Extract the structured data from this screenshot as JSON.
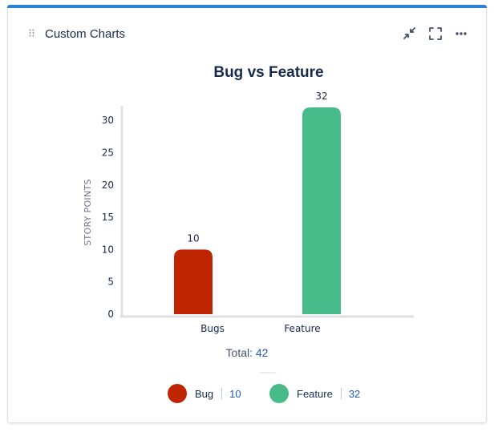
{
  "card": {
    "title": "Custom Charts"
  },
  "total": {
    "label": "Total:",
    "value": "42"
  },
  "legend": [
    {
      "name": "Bug",
      "value": "10"
    },
    {
      "name": "Feature",
      "value": "32"
    }
  ],
  "colors": {
    "accent": "#2d7fd8",
    "bug": "#bf2600",
    "feature": "#47bc8a"
  },
  "icons": [
    "drag-handle-icon",
    "minimize-icon",
    "fullscreen-icon",
    "more-icon"
  ],
  "chart_data": {
    "type": "bar",
    "title": "Bug vs Feature",
    "categories": [
      "Bugs",
      "Feature"
    ],
    "values": [
      10,
      32
    ],
    "ylabel": "STORY POINTS",
    "xlabel": "",
    "ylim": [
      0,
      32
    ],
    "yticks": [
      0,
      5,
      10,
      15,
      20,
      25,
      30
    ],
    "colors": [
      "#bf2600",
      "#47bc8a"
    ],
    "grid": false
  }
}
